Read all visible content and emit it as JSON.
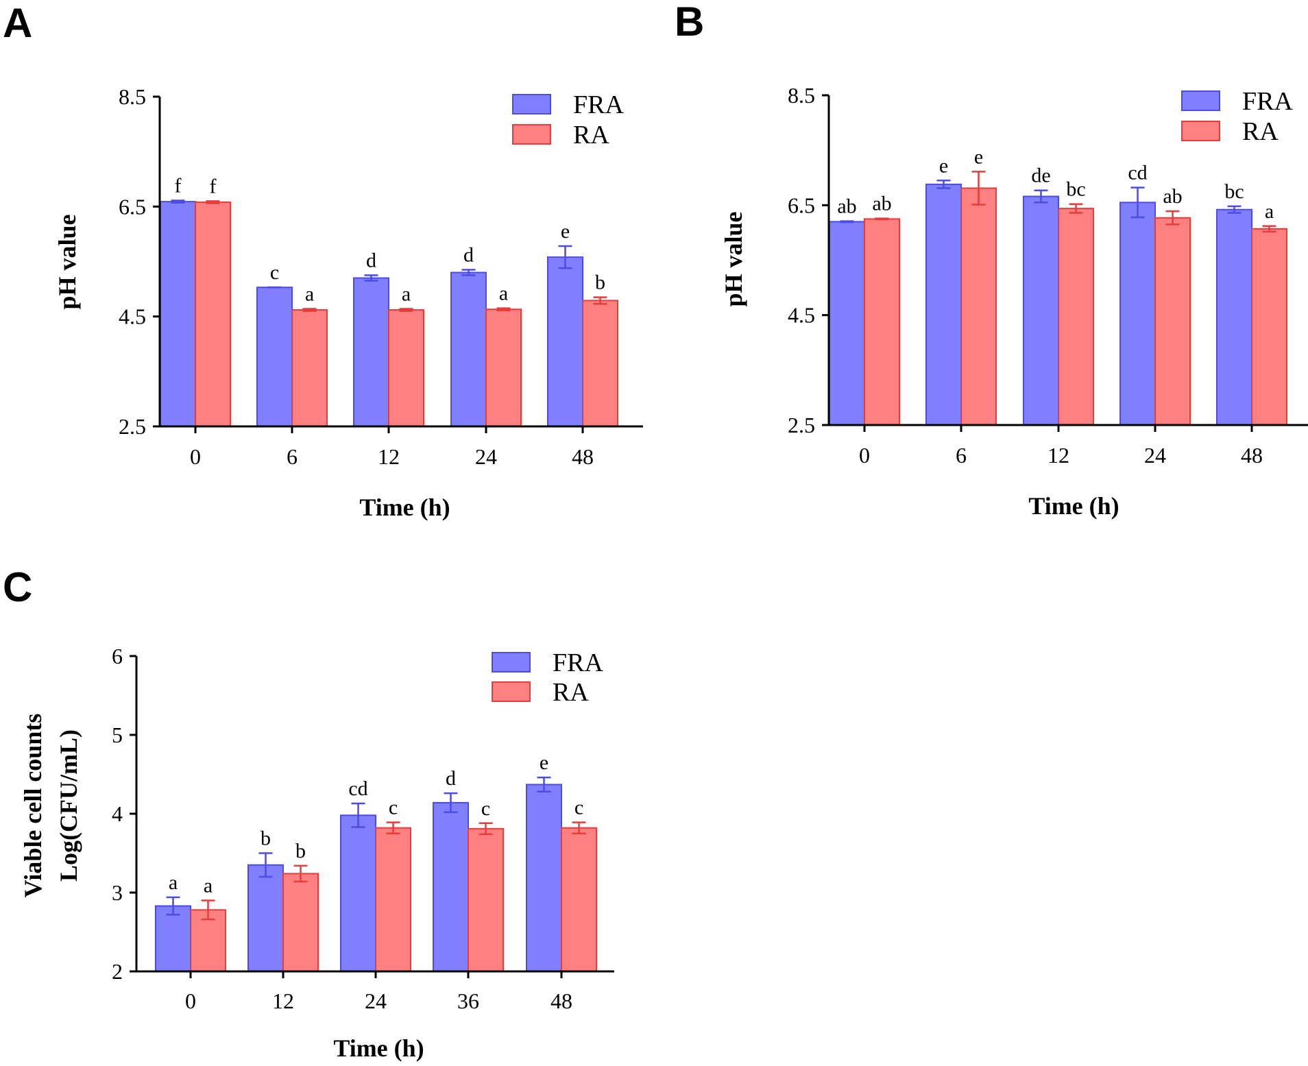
{
  "chart_data": [
    {
      "panel": "A",
      "type": "bar",
      "xlabel": "Time (h)",
      "ylabel": "pH value",
      "ylim": [
        2.5,
        8.5
      ],
      "yticks": [
        "2.5",
        "4.5",
        "6.5",
        "8.5"
      ],
      "categories": [
        "0",
        "6",
        "12",
        "24",
        "48"
      ],
      "series": [
        {
          "name": "FRA",
          "color": "#8080ff",
          "stroke": "#4b4be6",
          "values": [
            6.59,
            5.03,
            5.2,
            5.3,
            5.58
          ],
          "errors": [
            0.02,
            0.0,
            0.05,
            0.05,
            0.2
          ],
          "labels": [
            "f",
            "c",
            "d",
            "d",
            "e"
          ]
        },
        {
          "name": "RA",
          "color": "#ff8080",
          "stroke": "#e63c3c",
          "values": [
            6.58,
            4.62,
            4.62,
            4.63,
            4.79
          ],
          "errors": [
            0.02,
            0.02,
            0.02,
            0.02,
            0.06
          ],
          "labels": [
            "f",
            "a",
            "a",
            "a",
            "b"
          ]
        }
      ]
    },
    {
      "panel": "B",
      "type": "bar",
      "xlabel": "Time (h)",
      "ylabel": "pH value",
      "ylim": [
        2.5,
        8.5
      ],
      "yticks": [
        "2.5",
        "4.5",
        "6.5",
        "8.5"
      ],
      "categories": [
        "0",
        "6",
        "12",
        "24",
        "48"
      ],
      "series": [
        {
          "name": "FRA",
          "color": "#8080ff",
          "stroke": "#4b4be6",
          "values": [
            6.2,
            6.88,
            6.66,
            6.55,
            6.42
          ],
          "errors": [
            0.01,
            0.07,
            0.11,
            0.27,
            0.06
          ],
          "labels": [
            "ab",
            "e",
            "de",
            "cd",
            "bc"
          ]
        },
        {
          "name": "RA",
          "color": "#ff8080",
          "stroke": "#e63c3c",
          "values": [
            6.25,
            6.81,
            6.44,
            6.27,
            6.07
          ],
          "errors": [
            0.01,
            0.3,
            0.08,
            0.12,
            0.05
          ],
          "labels": [
            "ab",
            "e",
            "bc",
            "ab",
            "a"
          ]
        }
      ]
    },
    {
      "panel": "C",
      "type": "bar",
      "xlabel": "Time (h)",
      "ylabel": [
        "Viable cell counts",
        "Log(CFU/mL)"
      ],
      "ylim": [
        2,
        6
      ],
      "yticks": [
        "2",
        "3",
        "4",
        "5",
        "6"
      ],
      "categories": [
        "0",
        "12",
        "24",
        "36",
        "48"
      ],
      "series": [
        {
          "name": "FRA",
          "color": "#8080ff",
          "stroke": "#4b4be6",
          "values": [
            2.83,
            3.35,
            3.98,
            4.14,
            4.37
          ],
          "errors": [
            0.11,
            0.15,
            0.15,
            0.12,
            0.09
          ],
          "labels": [
            "a",
            "b",
            "cd",
            "d",
            "e"
          ]
        },
        {
          "name": "RA",
          "color": "#ff8080",
          "stroke": "#e63c3c",
          "values": [
            2.78,
            3.24,
            3.82,
            3.81,
            3.82
          ],
          "errors": [
            0.12,
            0.1,
            0.07,
            0.07,
            0.07
          ],
          "labels": [
            "a",
            "b",
            "c",
            "c",
            "c"
          ]
        }
      ]
    }
  ]
}
